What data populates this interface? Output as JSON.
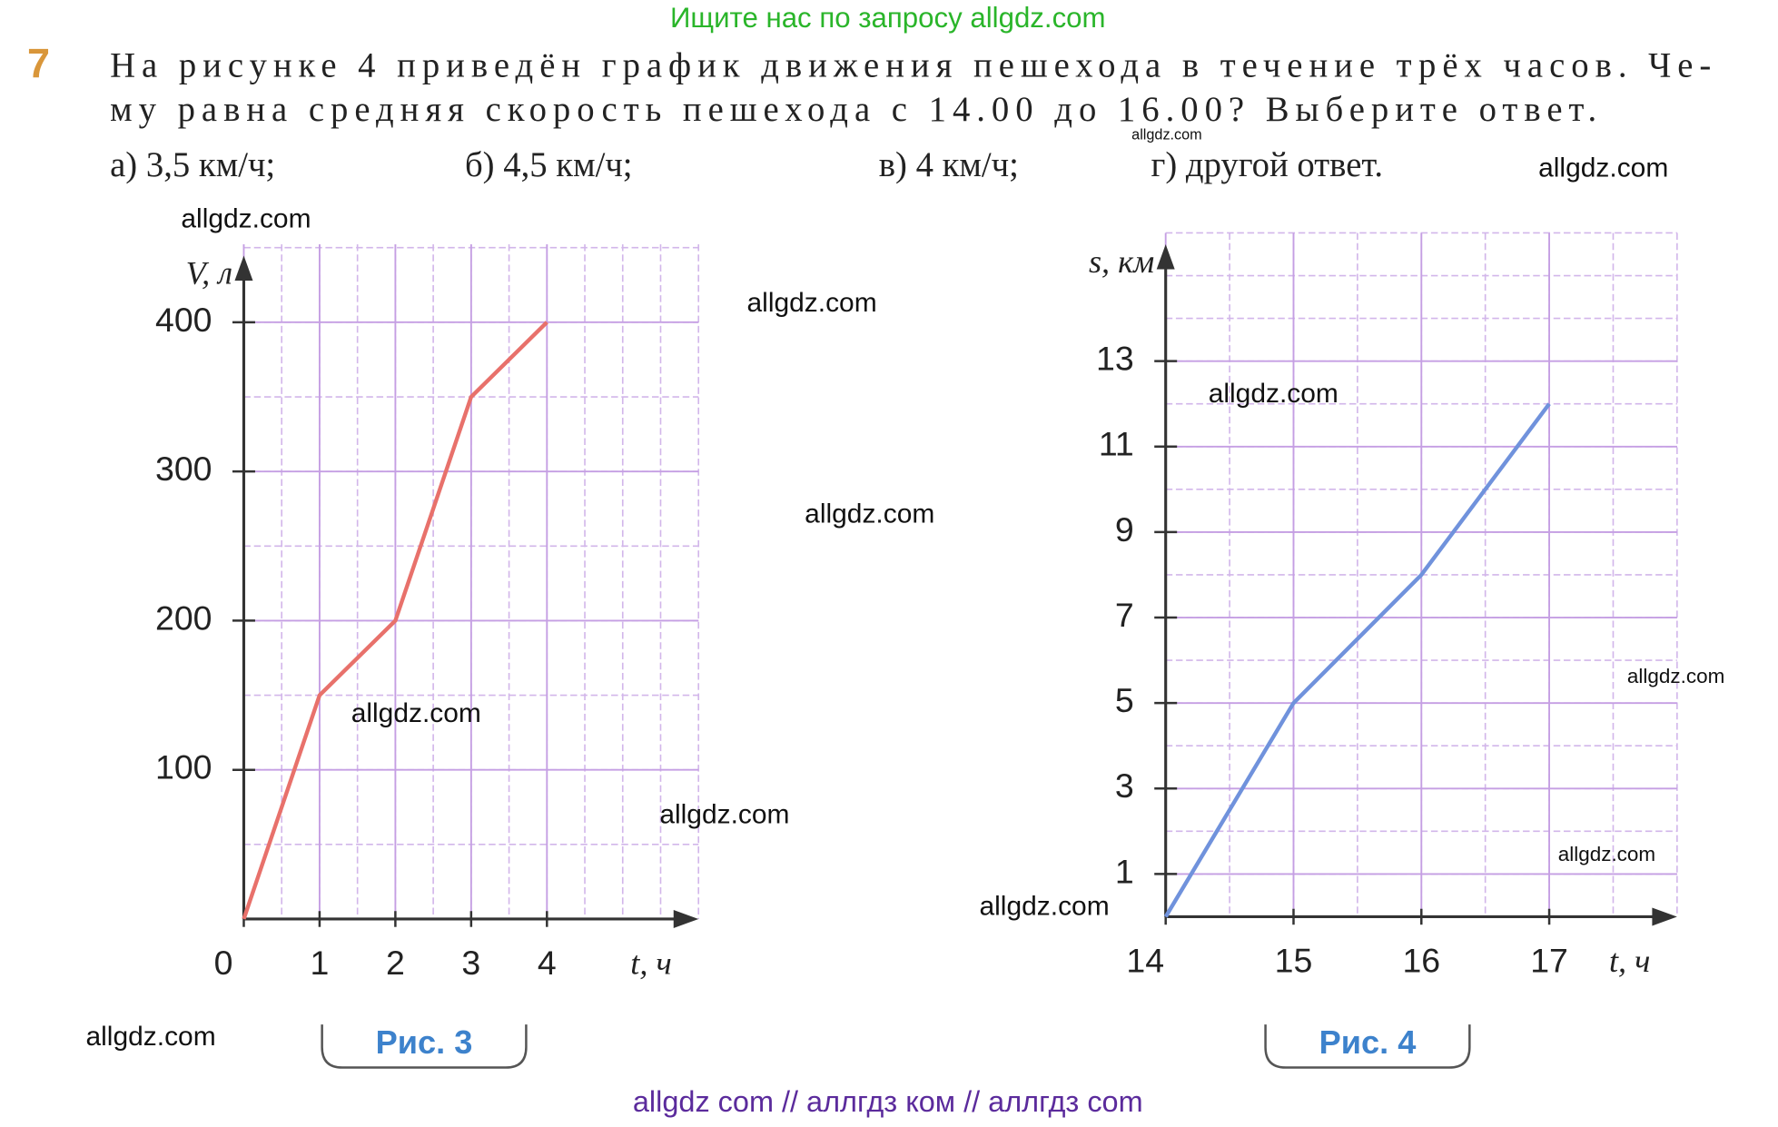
{
  "header": {
    "banner": "Ищите нас по запросу allgdz.com"
  },
  "problem": {
    "number": "7",
    "lines": [
      "На рисунке 4 приведён график движения пешехода в течение трёх часов. Че-",
      "му равна средняя скорость пешехода с 14.00 до 16.00? Выберите ответ."
    ],
    "options": [
      "а) 3,5 км/ч;",
      "б) 4,5 км/ч;",
      "в) 4 км/ч;",
      "г) другой ответ."
    ]
  },
  "watermarks": [
    "allgdz.com",
    "allgdz.com",
    "allgdz.com",
    "allgdz.com",
    "allgdz.com",
    "allgdz.com",
    "allgdz.com",
    "allgdz.com",
    "allgdz.com",
    "allgdz.com",
    "allgdz.com",
    "allgdz.com"
  ],
  "footer": {
    "text": "allgdz com  //  аллгдз ком  //  аллгдз com"
  },
  "chart_data": [
    {
      "type": "line",
      "caption": "Рис. 3",
      "x_label": "t, ч",
      "y_label": "V, л",
      "x": [
        0,
        1,
        2,
        3,
        4
      ],
      "values": [
        0,
        150,
        200,
        350,
        400
      ],
      "color": "#e8716b",
      "xlim": [
        0,
        6
      ],
      "ylim": [
        0,
        450
      ],
      "xticks": [
        0,
        1,
        2,
        3,
        4
      ],
      "yticks": [
        100,
        200,
        300,
        400
      ],
      "grid": true
    },
    {
      "type": "line",
      "caption": "Рис. 4",
      "x_label": "t, ч",
      "y_label": "s, км",
      "x": [
        14,
        15,
        16,
        17
      ],
      "values": [
        0,
        5,
        8,
        12
      ],
      "color": "#7092dc",
      "xlim": [
        14,
        18
      ],
      "ylim": [
        0,
        16
      ],
      "xticks": [
        14,
        15,
        16,
        17
      ],
      "yticks": [
        1,
        3,
        5,
        7,
        9,
        11,
        13
      ],
      "grid": true
    }
  ]
}
